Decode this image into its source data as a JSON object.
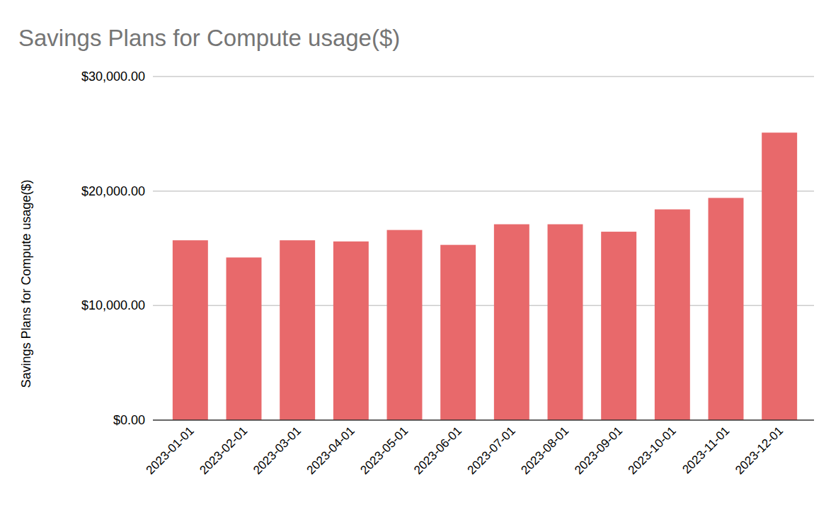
{
  "chart_data": {
    "type": "bar",
    "title": "Savings Plans for  Compute usage($)",
    "y_label": "Savings Plans for  Compute usage($)",
    "categories": [
      "2023-01-01",
      "2023-02-01",
      "2023-03-01",
      "2023-04-01",
      "2023-05-01",
      "2023-06-01",
      "2023-07-01",
      "2023-08-01",
      "2023-09-01",
      "2023-10-01",
      "2023-11-01",
      "2023-12-01"
    ],
    "values": [
      15700,
      14200,
      15700,
      15600,
      16600,
      15300,
      17100,
      17100,
      16450,
      18400,
      19400,
      25100
    ],
    "color": "#e8696b",
    "ylim": [
      0,
      30000
    ],
    "yticks": [
      {
        "value": 0,
        "label": "$0.00"
      },
      {
        "value": 10000,
        "label": "$10,000.00"
      },
      {
        "value": 20000,
        "label": "$20,000.00"
      },
      {
        "value": 30000,
        "label": "$30,000.00"
      }
    ],
    "grid": true
  }
}
